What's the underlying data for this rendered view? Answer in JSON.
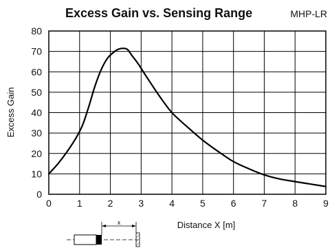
{
  "chart_data": {
    "type": "line",
    "title": "Excess Gain vs. Sensing Range",
    "model": "MHP-LR",
    "xlabel": "Distance X [m]",
    "ylabel": "Excess Gain",
    "xlim": [
      0,
      9
    ],
    "ylim": [
      0,
      80
    ],
    "xticks": [
      0,
      1,
      2,
      3,
      4,
      5,
      6,
      7,
      8,
      9
    ],
    "yticks": [
      0,
      10,
      20,
      30,
      40,
      50,
      60,
      70,
      80
    ],
    "grid": true,
    "series": [
      {
        "x": [
          0,
          0.3,
          0.6,
          0.9,
          1.1,
          1.3,
          1.5,
          1.7,
          1.9,
          2.1,
          2.25,
          2.4,
          2.55,
          2.7,
          2.9,
          3.2,
          3.6,
          4.0,
          4.5,
          5.0,
          5.5,
          6.0,
          6.5,
          7.0,
          7.5,
          8.0,
          8.5,
          9.0
        ],
        "y": [
          10,
          15,
          21,
          28,
          34,
          43,
          53,
          61,
          66.5,
          69.5,
          71,
          71.5,
          71,
          68,
          64,
          57,
          48,
          40,
          33,
          26.5,
          21,
          16,
          12.5,
          9.5,
          7.5,
          6.2,
          5,
          3.8
        ]
      }
    ],
    "diagram_label": "x"
  }
}
